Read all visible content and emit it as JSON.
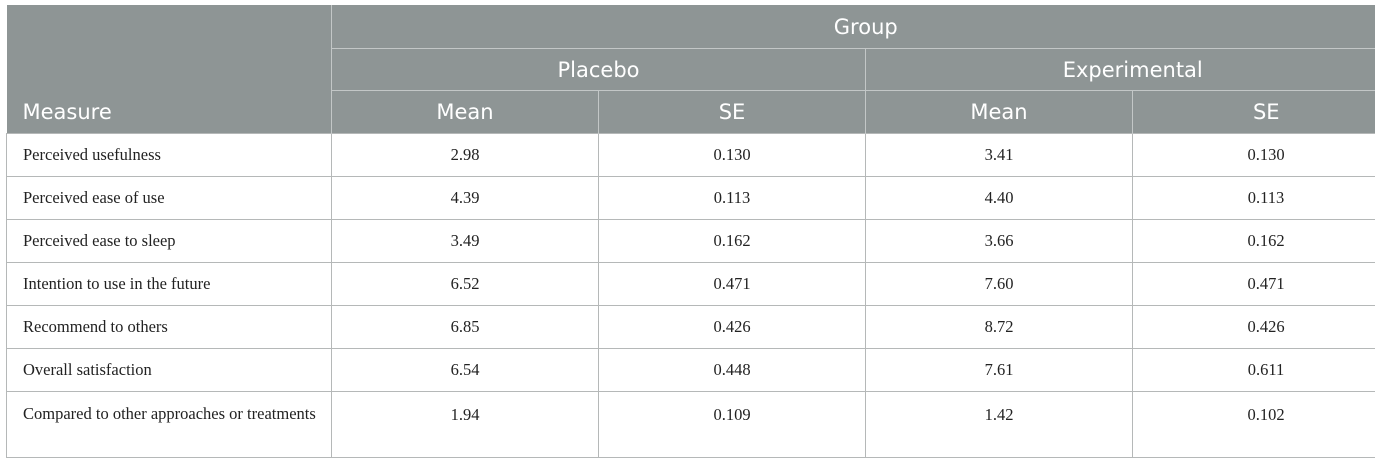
{
  "header": {
    "measure": "Measure",
    "group": "Group",
    "groups": [
      "Placebo",
      "Experimental"
    ],
    "stats": [
      "Mean",
      "SE",
      "Mean",
      "SE"
    ]
  },
  "rows": [
    {
      "measure": "Perceived usefulness",
      "placebo_mean": "2.98",
      "placebo_se": "0.130",
      "exp_mean": "3.41",
      "exp_se": "0.130"
    },
    {
      "measure": "Perceived ease of use",
      "placebo_mean": "4.39",
      "placebo_se": "0.113",
      "exp_mean": "4.40",
      "exp_se": "0.113"
    },
    {
      "measure": "Perceived ease to sleep",
      "placebo_mean": "3.49",
      "placebo_se": "0.162",
      "exp_mean": "3.66",
      "exp_se": "0.162"
    },
    {
      "measure": "Intention to use in the future",
      "placebo_mean": "6.52",
      "placebo_se": "0.471",
      "exp_mean": "7.60",
      "exp_se": "0.471"
    },
    {
      "measure": "Recommend to others",
      "placebo_mean": "6.85",
      "placebo_se": "0.426",
      "exp_mean": "8.72",
      "exp_se": "0.426"
    },
    {
      "measure": "Overall satisfaction",
      "placebo_mean": "6.54",
      "placebo_se": "0.448",
      "exp_mean": "7.61",
      "exp_se": "0.611"
    },
    {
      "measure": "Compared to other approaches or treatments",
      "placebo_mean": "1.94",
      "placebo_se": "0.109",
      "exp_mean": "1.42",
      "exp_se": "0.102"
    }
  ]
}
